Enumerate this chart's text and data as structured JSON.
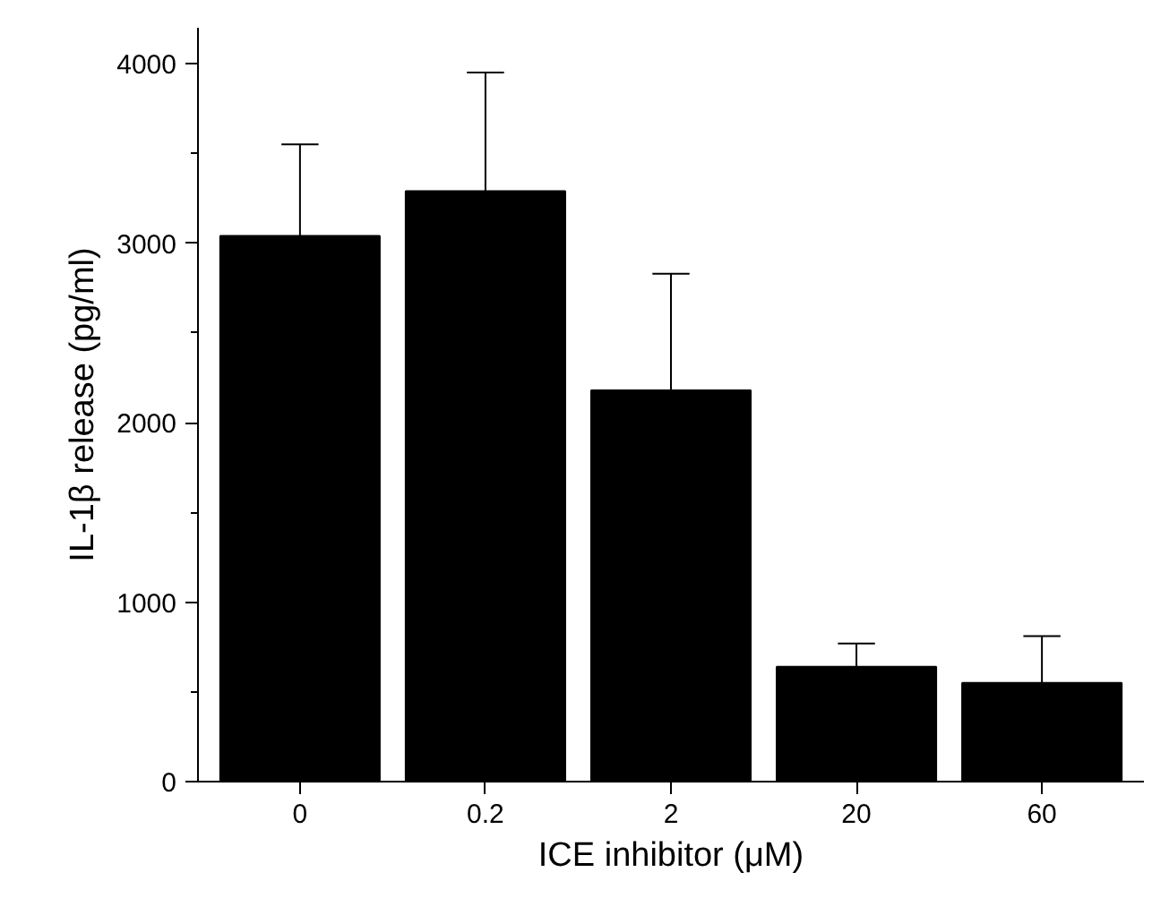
{
  "chart_data": {
    "type": "bar",
    "xlabel": "ICE inhibitor (μM)",
    "ylabel": "IL-1β release (pg/ml)",
    "categories": [
      "0",
      "0.2",
      "2",
      "20",
      "60"
    ],
    "values": [
      3040,
      3290,
      2180,
      640,
      550
    ],
    "errors": [
      [
        3040,
        3550
      ],
      [
        3290,
        3950
      ],
      [
        2180,
        2830
      ],
      [
        640,
        770
      ],
      [
        550,
        810
      ]
    ],
    "color": "#000000",
    "ylim": [
      0,
      4200
    ],
    "yticks": [
      0,
      1000,
      2000,
      3000,
      4000
    ],
    "grid": false
  }
}
